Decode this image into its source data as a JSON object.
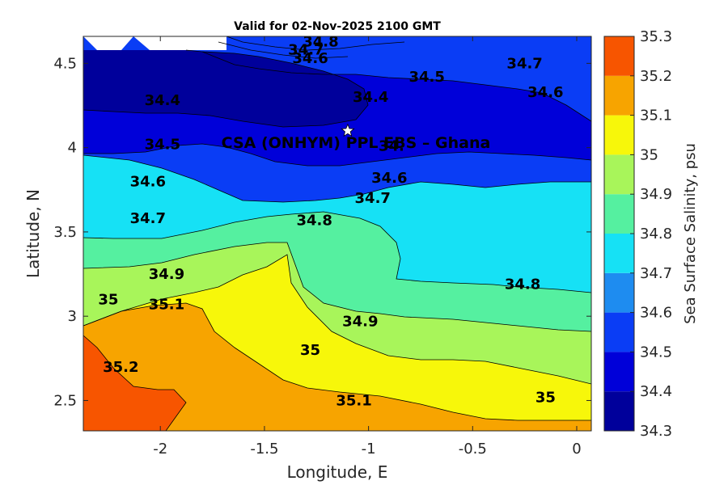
{
  "title": "Valid for 02-Nov-2025 2100 GMT",
  "chart_data": {
    "type": "heatmap",
    "subtype": "filled-contour-map",
    "title": "Valid for 02-Nov-2025 2100 GMT",
    "xlabel": "Longitude, E",
    "ylabel": "Latitude, N",
    "xlim": [
      -2.37,
      0.07
    ],
    "ylim": [
      2.32,
      4.66
    ],
    "x_ticks": [
      -2,
      -1.5,
      -1,
      -0.5,
      0
    ],
    "x_tick_labels": [
      "-2",
      "-1.5",
      "-1",
      "-0.5",
      "0"
    ],
    "y_ticks": [
      2.5,
      3,
      3.5,
      4,
      4.5
    ],
    "y_tick_labels": [
      "2.5",
      "3",
      "3.5",
      "4",
      "4.5"
    ],
    "colorbar": {
      "label": "Sea Surface Salinity, psu",
      "ticks": [
        34.3,
        34.4,
        34.5,
        34.6,
        34.7,
        34.8,
        34.9,
        35,
        35.1,
        35.2,
        35.3
      ],
      "tick_labels": [
        "34.3",
        "34.4",
        "34.5",
        "34.6",
        "34.7",
        "34.8",
        "34.9",
        "35",
        "35.1",
        "35.2",
        "35.3"
      ],
      "colors": [
        "#00009b",
        "#0000d9",
        "#0a3df5",
        "#1e8cf0",
        "#16e1f5",
        "#55f0a0",
        "#a8f55a",
        "#f7f70a",
        "#f7a400",
        "#f75500"
      ],
      "placement": "right"
    },
    "contour_labels": [
      {
        "text": "34.8",
        "lon": -1.23,
        "lat": 4.63
      },
      {
        "text": "34.7",
        "lon": -1.3,
        "lat": 4.58
      },
      {
        "text": "34.6",
        "lon": -1.28,
        "lat": 4.53
      },
      {
        "text": "34.7",
        "lon": -0.25,
        "lat": 4.5
      },
      {
        "text": "34.5",
        "lon": -0.72,
        "lat": 4.42
      },
      {
        "text": "34.6",
        "lon": -0.15,
        "lat": 4.33
      },
      {
        "text": "34.4",
        "lon": -0.99,
        "lat": 4.3
      },
      {
        "text": "34.4",
        "lon": -1.99,
        "lat": 4.28
      },
      {
        "text": "34.5",
        "lon": -1.99,
        "lat": 4.02
      },
      {
        "text": "34.",
        "lon": -0.89,
        "lat": 4.01
      },
      {
        "text": "34.6",
        "lon": -2.06,
        "lat": 3.8
      },
      {
        "text": "34.6",
        "lon": -0.9,
        "lat": 3.82
      },
      {
        "text": "34.7",
        "lon": -0.98,
        "lat": 3.7
      },
      {
        "text": "34.7",
        "lon": -2.06,
        "lat": 3.58
      },
      {
        "text": "34.8",
        "lon": -1.26,
        "lat": 3.57
      },
      {
        "text": "34.9",
        "lon": -1.97,
        "lat": 3.25
      },
      {
        "text": "34.8",
        "lon": -0.26,
        "lat": 3.19
      },
      {
        "text": "35",
        "lon": -2.25,
        "lat": 3.1
      },
      {
        "text": "35.1",
        "lon": -1.97,
        "lat": 3.07
      },
      {
        "text": "34.9",
        "lon": -1.04,
        "lat": 2.97
      },
      {
        "text": "35",
        "lon": -1.28,
        "lat": 2.8
      },
      {
        "text": "35.2",
        "lon": -2.19,
        "lat": 2.7
      },
      {
        "text": "35.1",
        "lon": -1.07,
        "lat": 2.5
      },
      {
        "text": "35",
        "lon": -0.15,
        "lat": 2.52
      }
    ],
    "marker": {
      "symbol": "star",
      "lon": -1.1,
      "lat": 4.1
    },
    "site_label": "CSA (ONHYM) PPL EBS  – Ghana"
  }
}
